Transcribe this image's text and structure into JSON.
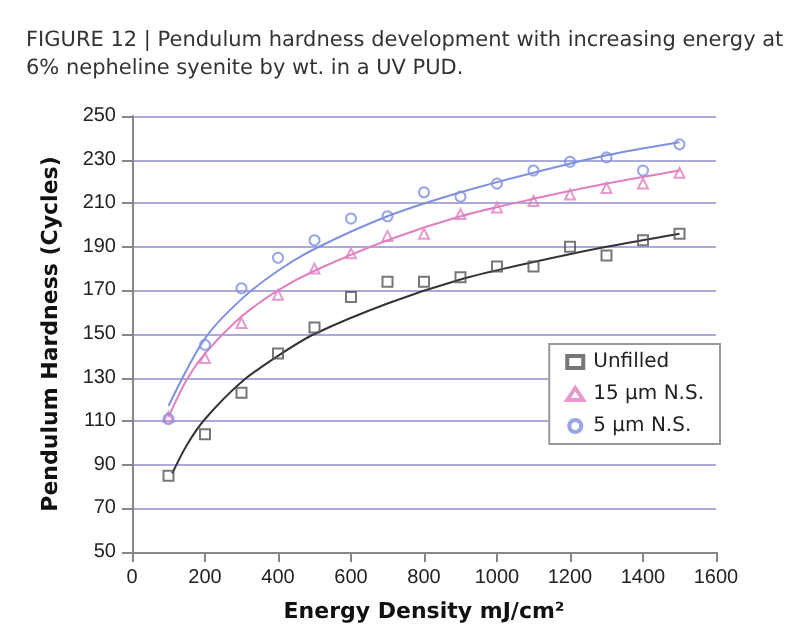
{
  "chart_data": {
    "type": "scatter",
    "title": "FIGURE 12 | Pendulum hardness development with increasing energy at 6% nepheline syenite by wt. in a UV PUD.",
    "xlabel": "Energy Density mJ/cm²",
    "ylabel": "Pendulum Hardness (Cycles)",
    "x": [
      100,
      200,
      300,
      400,
      500,
      600,
      700,
      800,
      900,
      1000,
      1100,
      1200,
      1300,
      1400,
      1500
    ],
    "series": [
      {
        "name": "Unfilled",
        "color": "#555555",
        "marker": "square",
        "values": [
          85,
          104,
          123,
          141,
          153,
          167,
          174,
          174,
          176,
          181,
          181,
          190,
          186,
          193,
          196
        ]
      },
      {
        "name": "15 µm N.S.",
        "color": "#e080c0",
        "marker": "triangle",
        "values": [
          112,
          139,
          155,
          168,
          180,
          187,
          195,
          196,
          205,
          208,
          211,
          214,
          217,
          219,
          224
        ]
      },
      {
        "name": "5 µm N.S.",
        "color": "#8090e0",
        "marker": "circle",
        "values": [
          111,
          145,
          171,
          185,
          193,
          203,
          204,
          215,
          213,
          219,
          225,
          229,
          231,
          225,
          237
        ]
      },
      {
        "type": "line",
        "color": "#333333",
        "marker": "none",
        "x": [
          110,
          150,
          200,
          300,
          400,
          500,
          700,
          900,
          1100,
          1300,
          1500
        ],
        "values": [
          86,
          99,
          111,
          128,
          140,
          150,
          164,
          175,
          183,
          190,
          196
        ]
      },
      {
        "type": "line",
        "color": "#e080c0",
        "marker": "none",
        "x": [
          100,
          150,
          200,
          300,
          400,
          500,
          700,
          900,
          1100,
          1300,
          1500
        ],
        "values": [
          112,
          129,
          141,
          158,
          170,
          179,
          193,
          204,
          212,
          219,
          225
        ]
      },
      {
        "type": "line",
        "color": "#8090e0",
        "marker": "none",
        "x": [
          100,
          200,
          300,
          400,
          500,
          700,
          900,
          1100,
          1300,
          1500
        ],
        "values": [
          117,
          148,
          166,
          179,
          189,
          204,
          215,
          224,
          232,
          238
        ]
      }
    ],
    "xlim": [
      0,
      1600
    ],
    "xticks": [
      0,
      200,
      400,
      600,
      800,
      1000,
      1200,
      1400,
      1600
    ],
    "ylim": [
      50,
      250
    ],
    "yticks": [
      50,
      70,
      90,
      110,
      130,
      150,
      170,
      190,
      210,
      230,
      250
    ],
    "grid": "y",
    "legend": "right"
  }
}
